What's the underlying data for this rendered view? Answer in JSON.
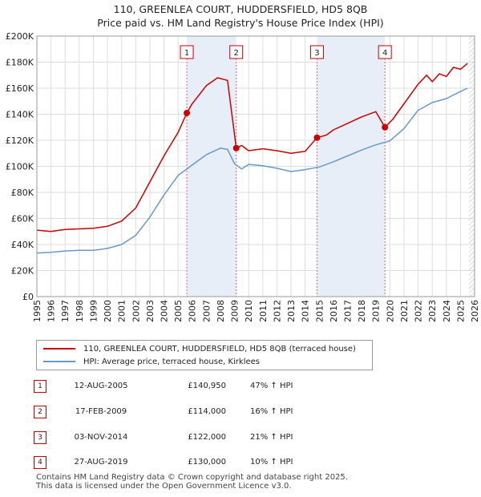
{
  "chart_data": {
    "type": "line",
    "title": "110, GREENLEA COURT, HUDDERSFIELD, HD5 8QB",
    "subtitle": "Price paid vs. HM Land Registry's House Price Index (HPI)",
    "xlabel": "",
    "ylabel": "",
    "xlim": [
      1995,
      2026
    ],
    "ylim": [
      0,
      200000
    ],
    "y_ticks": [
      0,
      20000,
      40000,
      60000,
      80000,
      100000,
      120000,
      140000,
      160000,
      180000,
      200000
    ],
    "y_tick_labels": [
      "£0",
      "£20K",
      "£40K",
      "£60K",
      "£80K",
      "£100K",
      "£120K",
      "£140K",
      "£160K",
      "£180K",
      "£200K"
    ],
    "x_ticks": [
      1995,
      1996,
      1997,
      1998,
      1999,
      2000,
      2001,
      2002,
      2003,
      2004,
      2005,
      2006,
      2007,
      2008,
      2009,
      2010,
      2011,
      2012,
      2013,
      2014,
      2015,
      2016,
      2017,
      2018,
      2019,
      2020,
      2021,
      2022,
      2023,
      2024,
      2025,
      2026
    ],
    "grid": true,
    "legend_position": "bottom",
    "series": [
      {
        "name": "110, GREENLEA COURT, HUDDERSFIELD, HD5 8QB (terraced house)",
        "color": "#cc0000",
        "x": [
          1995,
          1996,
          1997,
          1998,
          1999,
          2000,
          2001,
          2002,
          2003,
          2004,
          2005,
          2005.62,
          2006,
          2007,
          2007.8,
          2008.5,
          2009.12,
          2009.5,
          2010,
          2011,
          2012,
          2013,
          2014,
          2014.84,
          2015.5,
          2016,
          2017,
          2018,
          2019,
          2019.65,
          2020.2,
          2021,
          2022,
          2022.6,
          2023,
          2023.5,
          2024,
          2024.5,
          2025,
          2025.5
        ],
        "values": [
          51000,
          50000,
          51500,
          52000,
          52500,
          54000,
          58000,
          68000,
          88000,
          108000,
          126000,
          140950,
          148000,
          162000,
          168000,
          166000,
          114000,
          116000,
          112000,
          113500,
          112000,
          110000,
          111500,
          122000,
          124000,
          128000,
          133000,
          138000,
          142000,
          130000,
          136000,
          148000,
          163000,
          170000,
          165000,
          171000,
          169000,
          176000,
          174500,
          179000
        ]
      },
      {
        "name": "HPI: Average price, terraced house, Kirklees",
        "color": "#6699cc",
        "x": [
          1995,
          1996,
          1997,
          1998,
          1999,
          2000,
          2001,
          2002,
          2003,
          2004,
          2005,
          2006,
          2007,
          2008,
          2008.5,
          2009,
          2009.5,
          2010,
          2011,
          2012,
          2013,
          2014,
          2015,
          2016,
          2017,
          2018,
          2019,
          2020,
          2021,
          2022,
          2023,
          2024,
          2025,
          2025.5
        ],
        "values": [
          33500,
          34000,
          35000,
          35500,
          35500,
          37000,
          40000,
          47000,
          61000,
          78000,
          93000,
          101000,
          109000,
          114000,
          113000,
          102000,
          98000,
          101500,
          100500,
          98500,
          96000,
          97500,
          99500,
          103500,
          108000,
          112500,
          116500,
          119500,
          129000,
          143000,
          149000,
          152000,
          157500,
          160000
        ]
      }
    ],
    "sales": [
      {
        "num": "1",
        "date": "12-AUG-2005",
        "x": 2005.62,
        "price": 140950,
        "price_label": "£140,950",
        "hpi": "47% ↑ HPI"
      },
      {
        "num": "2",
        "date": "17-FEB-2009",
        "x": 2009.12,
        "price": 114000,
        "price_label": "£114,000",
        "hpi": "16% ↑ HPI"
      },
      {
        "num": "3",
        "date": "03-NOV-2014",
        "x": 2014.84,
        "price": 122000,
        "price_label": "£122,000",
        "hpi": "21% ↑ HPI"
      },
      {
        "num": "4",
        "date": "27-AUG-2019",
        "x": 2019.65,
        "price": 130000,
        "price_label": "£130,000",
        "hpi": "10% ↑ HPI"
      }
    ],
    "future_shade_start": 2025.6
  },
  "footer": {
    "line1": "Contains HM Land Registry data © Crown copyright and database right 2025.",
    "line2": "This data is licensed under the Open Government Licence v3.0."
  }
}
